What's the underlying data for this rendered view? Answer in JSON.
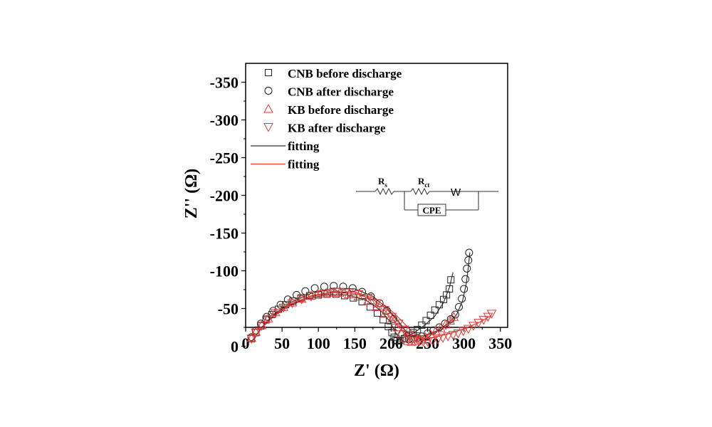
{
  "chart_data": {
    "type": "scatter",
    "title": "",
    "xlabel": "Z' (Ω)",
    "ylabel": "Z'' (Ω)",
    "xlim": [
      0,
      360
    ],
    "ylim": [
      -25,
      -375
    ],
    "x_ticks": [
      0,
      50,
      100,
      150,
      200,
      250,
      300,
      350
    ],
    "y_ticks": [
      0,
      -50,
      -100,
      -150,
      -200,
      -250,
      -300,
      -350
    ],
    "x_tick_labels": [
      "0",
      "50",
      "100",
      "150",
      "200",
      "250",
      "300",
      "350"
    ],
    "y_tick_labels": [
      "0",
      "-50",
      "-100",
      "-150",
      "-200",
      "-250",
      "-300",
      "-350"
    ],
    "legend_position": "top-left",
    "series": [
      {
        "name": "CNB before discharge",
        "marker": "square",
        "color": "#222222",
        "points": [
          [
            8,
            -10
          ],
          [
            14,
            -18
          ],
          [
            21,
            -27
          ],
          [
            28,
            -35
          ],
          [
            36,
            -42
          ],
          [
            45,
            -49
          ],
          [
            55,
            -55
          ],
          [
            65,
            -60
          ],
          [
            76,
            -64
          ],
          [
            88,
            -67
          ],
          [
            100,
            -68
          ],
          [
            112,
            -69
          ],
          [
            124,
            -69
          ],
          [
            136,
            -67
          ],
          [
            148,
            -64
          ],
          [
            160,
            -59
          ],
          [
            171,
            -52
          ],
          [
            181,
            -44
          ],
          [
            189,
            -35
          ],
          [
            196,
            -26
          ],
          [
            201,
            -18
          ],
          [
            204,
            -12
          ],
          [
            206,
            -8
          ],
          [
            208,
            -7
          ],
          [
            212,
            -8
          ],
          [
            218,
            -10
          ],
          [
            224,
            -14
          ],
          [
            230,
            -18
          ],
          [
            236,
            -22
          ],
          [
            242,
            -28
          ],
          [
            248,
            -34
          ],
          [
            254,
            -41
          ],
          [
            260,
            -48
          ],
          [
            266,
            -55
          ],
          [
            272,
            -62
          ],
          [
            276,
            -68
          ],
          [
            280,
            -76
          ],
          [
            282,
            -88
          ]
        ]
      },
      {
        "name": "CNB after discharge",
        "marker": "circle",
        "color": "#222222",
        "points": [
          [
            8,
            -12
          ],
          [
            14,
            -21
          ],
          [
            21,
            -30
          ],
          [
            29,
            -39
          ],
          [
            38,
            -47
          ],
          [
            48,
            -55
          ],
          [
            58,
            -62
          ],
          [
            70,
            -68
          ],
          [
            82,
            -73
          ],
          [
            95,
            -77
          ],
          [
            108,
            -79
          ],
          [
            121,
            -80
          ],
          [
            134,
            -79
          ],
          [
            147,
            -77
          ],
          [
            160,
            -72
          ],
          [
            172,
            -66
          ],
          [
            184,
            -57
          ],
          [
            194,
            -47
          ],
          [
            203,
            -36
          ],
          [
            210,
            -25
          ],
          [
            215,
            -16
          ],
          [
            219,
            -11
          ],
          [
            224,
            -9
          ],
          [
            230,
            -10
          ],
          [
            236,
            -11
          ],
          [
            242,
            -13
          ],
          [
            250,
            -17
          ],
          [
            258,
            -21
          ],
          [
            266,
            -25
          ],
          [
            274,
            -30
          ],
          [
            282,
            -36
          ],
          [
            288,
            -42
          ],
          [
            293,
            -52
          ],
          [
            297,
            -63
          ],
          [
            300,
            -76
          ],
          [
            302,
            -89
          ],
          [
            304,
            -103
          ],
          [
            306,
            -114
          ],
          [
            307,
            -124
          ]
        ]
      },
      {
        "name": "KB before discharge",
        "marker": "triangle-up",
        "color": "#e53935",
        "points": [
          [
            8,
            -11
          ],
          [
            14,
            -19
          ],
          [
            22,
            -28
          ],
          [
            31,
            -37
          ],
          [
            41,
            -45
          ],
          [
            52,
            -52
          ],
          [
            64,
            -58
          ],
          [
            77,
            -63
          ],
          [
            90,
            -67
          ],
          [
            103,
            -70
          ],
          [
            116,
            -71
          ],
          [
            129,
            -71
          ],
          [
            142,
            -69
          ],
          [
            155,
            -66
          ],
          [
            168,
            -60
          ],
          [
            180,
            -52
          ],
          [
            191,
            -43
          ],
          [
            200,
            -34
          ],
          [
            208,
            -25
          ],
          [
            214,
            -17
          ],
          [
            219,
            -11
          ],
          [
            223,
            -7
          ],
          [
            228,
            -6
          ],
          [
            234,
            -7
          ],
          [
            240,
            -9
          ],
          [
            247,
            -12
          ],
          [
            254,
            -16
          ],
          [
            261,
            -20
          ],
          [
            268,
            -24
          ],
          [
            275,
            -29
          ],
          [
            281,
            -34
          ],
          [
            286,
            -39
          ]
        ]
      },
      {
        "name": "KB after discharge",
        "marker": "triangle-down",
        "color": "#e53935",
        "points": [
          [
            8,
            -10
          ],
          [
            14,
            -18
          ],
          [
            22,
            -27
          ],
          [
            31,
            -36
          ],
          [
            41,
            -44
          ],
          [
            52,
            -51
          ],
          [
            64,
            -57
          ],
          [
            77,
            -62
          ],
          [
            90,
            -66
          ],
          [
            103,
            -69
          ],
          [
            116,
            -71
          ],
          [
            129,
            -72
          ],
          [
            142,
            -71
          ],
          [
            155,
            -69
          ],
          [
            168,
            -64
          ],
          [
            180,
            -57
          ],
          [
            191,
            -48
          ],
          [
            201,
            -39
          ],
          [
            210,
            -30
          ],
          [
            218,
            -22
          ],
          [
            225,
            -15
          ],
          [
            232,
            -10
          ],
          [
            238,
            -7
          ],
          [
            244,
            -6
          ],
          [
            250,
            -6
          ],
          [
            257,
            -7
          ],
          [
            264,
            -9
          ],
          [
            271,
            -11
          ],
          [
            278,
            -13
          ],
          [
            285,
            -15
          ],
          [
            292,
            -17
          ],
          [
            299,
            -20
          ],
          [
            306,
            -23
          ],
          [
            313,
            -27
          ],
          [
            320,
            -31
          ],
          [
            327,
            -35
          ],
          [
            333,
            -39
          ],
          [
            338,
            -43
          ]
        ]
      },
      {
        "name": "fitting",
        "marker": "line",
        "color": "#333333",
        "curves": [
          [
            [
              8,
              -5
            ],
            [
              20,
              -22
            ],
            [
              35,
              -37
            ],
            [
              55,
              -51
            ],
            [
              80,
              -62
            ],
            [
              110,
              -68
            ],
            [
              140,
              -68
            ],
            [
              165,
              -61
            ],
            [
              185,
              -48
            ],
            [
              198,
              -33
            ],
            [
              206,
              -18
            ],
            [
              210,
              -12
            ],
            [
              216,
              -11
            ],
            [
              230,
              -17
            ],
            [
              245,
              -27
            ],
            [
              260,
              -40
            ],
            [
              272,
              -58
            ],
            [
              280,
              -78
            ],
            [
              285,
              -98
            ]
          ],
          [
            [
              8,
              -6
            ],
            [
              22,
              -25
            ],
            [
              40,
              -43
            ],
            [
              62,
              -58
            ],
            [
              90,
              -70
            ],
            [
              120,
              -77
            ],
            [
              150,
              -76
            ],
            [
              175,
              -66
            ],
            [
              195,
              -50
            ],
            [
              210,
              -33
            ],
            [
              220,
              -20
            ],
            [
              230,
              -13
            ],
            [
              245,
              -14
            ],
            [
              262,
              -20
            ],
            [
              278,
              -30
            ],
            [
              290,
              -42
            ],
            [
              298,
              -60
            ],
            [
              303,
              -82
            ],
            [
              306,
              -105
            ],
            [
              308,
              -124
            ]
          ]
        ]
      },
      {
        "name": "fitting",
        "marker": "line",
        "color": "#e53935",
        "curves": [
          [
            [
              8,
              -5
            ],
            [
              22,
              -24
            ],
            [
              40,
              -41
            ],
            [
              62,
              -55
            ],
            [
              90,
              -66
            ],
            [
              120,
              -71
            ],
            [
              150,
              -70
            ],
            [
              175,
              -62
            ],
            [
              195,
              -48
            ],
            [
              210,
              -32
            ],
            [
              220,
              -19
            ],
            [
              228,
              -12
            ],
            [
              240,
              -11
            ],
            [
              255,
              -16
            ],
            [
              270,
              -23
            ],
            [
              282,
              -31
            ],
            [
              288,
              -38
            ]
          ],
          [
            [
              8,
              -6
            ],
            [
              22,
              -25
            ],
            [
              40,
              -42
            ],
            [
              62,
              -56
            ],
            [
              90,
              -67
            ],
            [
              120,
              -72
            ],
            [
              150,
              -72
            ],
            [
              175,
              -64
            ],
            [
              196,
              -51
            ],
            [
              212,
              -36
            ],
            [
              226,
              -22
            ],
            [
              236,
              -13
            ],
            [
              246,
              -10
            ],
            [
              260,
              -12
            ],
            [
              280,
              -17
            ],
            [
              300,
              -23
            ],
            [
              320,
              -31
            ],
            [
              336,
              -40
            ]
          ]
        ]
      }
    ],
    "inset": {
      "Rs_main": "R",
      "Rs_sub": "s",
      "Rct_main": "R",
      "Rct_sub": "ct",
      "W_label": "W",
      "CPE_label": "CPE"
    }
  }
}
